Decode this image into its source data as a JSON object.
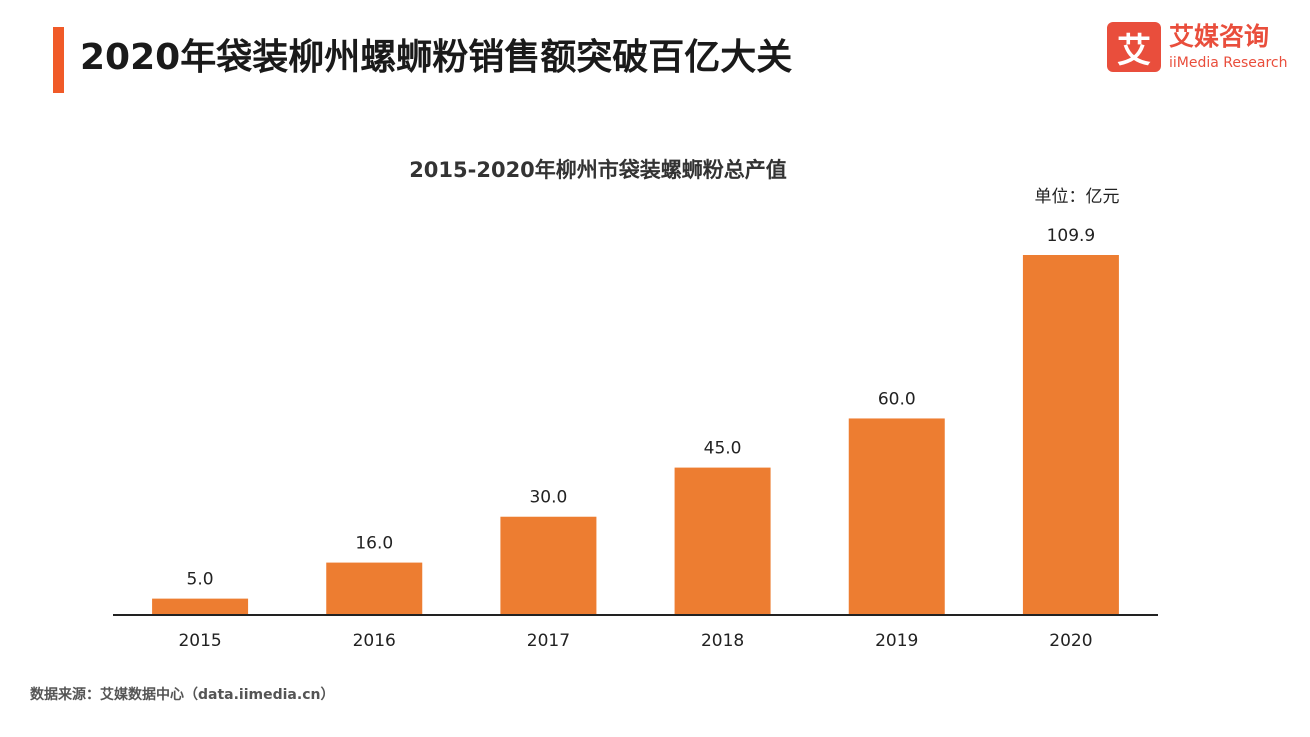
{
  "header": {
    "title": "2020年袋装柳州螺蛳粉销售额突破百亿大关",
    "accent_color": "#f05a28"
  },
  "logo": {
    "mark": "艾",
    "name_cn": "艾媒咨询",
    "name_en": "iiMedia Research",
    "color": "#e94e3c"
  },
  "chart_data": {
    "type": "bar",
    "title": "2015-2020年柳州市袋装螺蛳粉总产值",
    "unit_label": "单位：亿元",
    "categories": [
      "2015",
      "2016",
      "2017",
      "2018",
      "2019",
      "2020"
    ],
    "values": [
      5.0,
      16.0,
      30.0,
      45.0,
      60.0,
      109.9
    ],
    "value_labels": [
      "5.0",
      "16.0",
      "30.0",
      "45.0",
      "60.0",
      "109.9"
    ],
    "ylim": [
      0,
      115
    ],
    "bar_color": "#ed7d31",
    "grid": false,
    "xlabel": "",
    "ylabel": ""
  },
  "footer": {
    "source": "数据来源：艾媒数据中心（data.iimedia.cn）"
  }
}
